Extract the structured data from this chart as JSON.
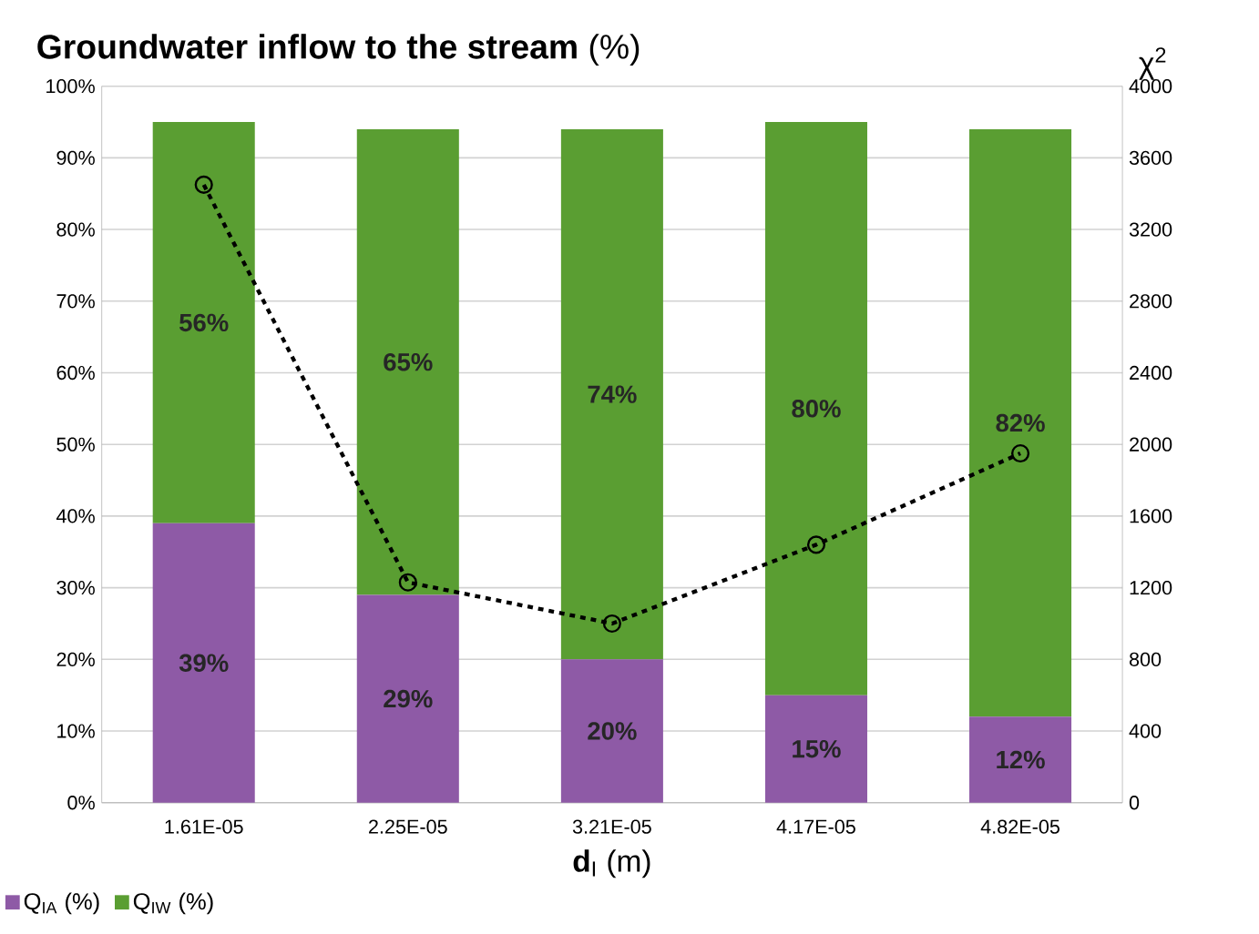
{
  "chart_data": {
    "type": "bar",
    "title": "**Groundwater inflow to the stream** (%)",
    "xlabel": "**d**$_{I}$ (m)",
    "y2label": "χ$^{2}$",
    "categories": [
      "1.61E-05",
      "2.25E-05",
      "3.21E-05",
      "4.17E-05",
      "4.82E-05"
    ],
    "series": [
      {
        "name": "Q$_{IA}$ (%)",
        "color": "#8e5aa6",
        "values": [
          39,
          29,
          20,
          15,
          12
        ],
        "value_labels": [
          "39%",
          "29%",
          "20%",
          "15%",
          "12%"
        ]
      },
      {
        "name": "Q$_{IW}$ (%)",
        "color": "#5a9e32",
        "values": [
          56,
          65,
          74,
          80,
          82
        ],
        "value_labels": [
          "56%",
          "65%",
          "74%",
          "80%",
          "82%"
        ]
      },
      {
        "type": "line",
        "axis": "y2",
        "color": "#000000",
        "marker": "circle",
        "line_style": "dashed",
        "values": [
          3450,
          1230,
          1000,
          1440,
          1950
        ]
      }
    ],
    "stacked": true,
    "ylim": [
      0,
      100
    ],
    "yticks": [
      {
        "value": 0,
        "label": "0%"
      },
      {
        "value": 10,
        "label": "10%"
      },
      {
        "value": 20,
        "label": "20%"
      },
      {
        "value": 30,
        "label": "30%"
      },
      {
        "value": 40,
        "label": "40%"
      },
      {
        "value": 50,
        "label": "50%"
      },
      {
        "value": 60,
        "label": "60%"
      },
      {
        "value": 70,
        "label": "70%"
      },
      {
        "value": 80,
        "label": "80%"
      },
      {
        "value": 90,
        "label": "90%"
      },
      {
        "value": 100,
        "label": "100%"
      }
    ],
    "y2lim": [
      0,
      4000
    ],
    "y2ticks": [
      0,
      400,
      800,
      1200,
      1600,
      2000,
      2400,
      2800,
      3200,
      3600,
      4000
    ],
    "grid": "y",
    "legend": "bottom left"
  }
}
